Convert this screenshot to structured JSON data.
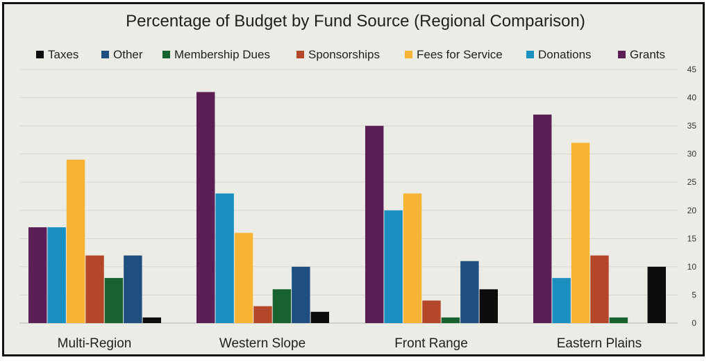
{
  "chart_data": {
    "type": "bar",
    "title": "Percentage of Budget by Fund Source (Regional Comparison)",
    "categories": [
      "Multi-Region",
      "Western Slope",
      "Front Range",
      "Eastern Plains"
    ],
    "ylim": [
      0,
      45
    ],
    "yticks": [
      0,
      5,
      10,
      15,
      20,
      25,
      30,
      35,
      40,
      45
    ],
    "grid": true,
    "y_axis_side": "right",
    "legend_position": "top",
    "legend_order": [
      "Taxes",
      "Other",
      "Membership Dues",
      "Sponsorships",
      "Fees for Service",
      "Donations",
      "Grants"
    ],
    "series": [
      {
        "name": "Grants",
        "color": "#5b1f55",
        "values": [
          17,
          41,
          35,
          37
        ]
      },
      {
        "name": "Donations",
        "color": "#1b8fc0",
        "values": [
          17,
          23,
          20,
          8
        ]
      },
      {
        "name": "Fees for Service",
        "color": "#f8b435",
        "values": [
          29,
          16,
          23,
          32
        ]
      },
      {
        "name": "Sponsorships",
        "color": "#b4472a",
        "values": [
          12,
          3,
          4,
          12
        ]
      },
      {
        "name": "Membership Dues",
        "color": "#18622f",
        "values": [
          8,
          6,
          1,
          1
        ]
      },
      {
        "name": "Other",
        "color": "#1f4f80",
        "values": [
          12,
          10,
          11,
          0
        ]
      },
      {
        "name": "Taxes",
        "color": "#0d0d0d",
        "values": [
          1,
          2,
          6,
          10
        ]
      }
    ]
  }
}
